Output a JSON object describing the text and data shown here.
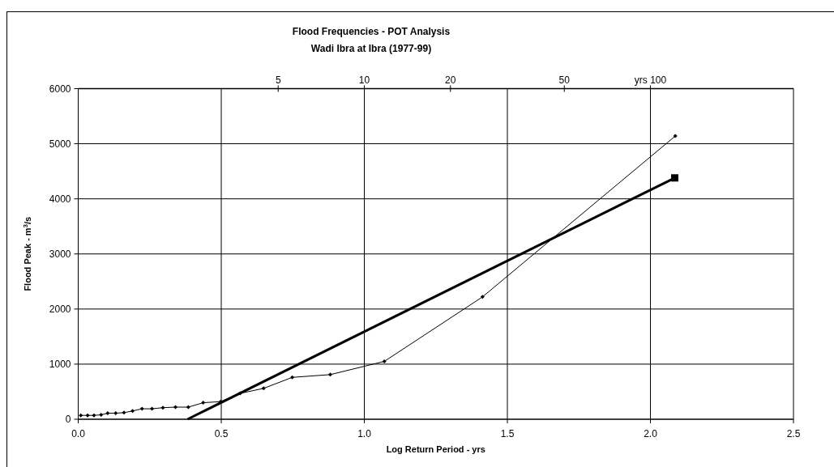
{
  "chart_data": {
    "type": "line",
    "title": "Flood Frequencies - POT Analysis",
    "subtitle": "Wadi Ibra at Ibra (1977-99)",
    "xlabel": "Log Return Period - yrs",
    "ylabel": "Flood Peak - m$^{3}$/s",
    "xlim": [
      0,
      2.5
    ],
    "xticks": [
      {
        "value": 0,
        "label": "0.0"
      },
      0.5,
      {
        "value": 1,
        "label": "1.0"
      },
      1.5,
      {
        "value": 2,
        "label": "2.0"
      },
      2.5
    ],
    "x2lim": [
      1,
      316.2
    ],
    "x2ticks": [
      5,
      10,
      20,
      50,
      {
        "value": 100,
        "label": "yrs 100"
      }
    ],
    "log": "x2",
    "ylim": [
      0,
      6000
    ],
    "yticks": [
      0,
      1000,
      2000,
      3000,
      4000,
      5000,
      6000
    ],
    "grid": true,
    "series": [
      {
        "color": "#000000",
        "marker": "diamond",
        "line_style": "solid",
        "x": [
          0.009,
          0.033,
          0.055,
          0.08,
          0.103,
          0.131,
          0.16,
          0.19,
          0.223,
          0.258,
          0.296,
          0.34,
          0.385,
          0.437,
          0.498,
          0.566,
          0.648,
          0.748,
          0.881,
          1.07,
          1.413,
          2.087
        ],
        "values": [
          70,
          70,
          70,
          80,
          110,
          110,
          120,
          150,
          190,
          190,
          210,
          220,
          220,
          300,
          320,
          470,
          560,
          760,
          810,
          1050,
          2220,
          5140
        ]
      },
      {
        "color": "#000000",
        "marker": "none",
        "line_style": "solid",
        "x": [
          0.382,
          2.085
        ],
        "values": [
          0,
          4380
        ]
      },
      {
        "type": "scatter",
        "color": "#000000",
        "marker": "square",
        "x": [
          2.085
        ],
        "values": [
          4380
        ]
      }
    ]
  }
}
